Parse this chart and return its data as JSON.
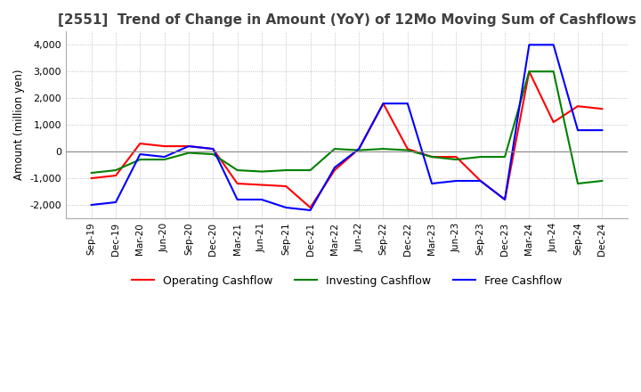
{
  "title": "[2551]  Trend of Change in Amount (YoY) of 12Mo Moving Sum of Cashflows",
  "ylabel": "Amount (million yen)",
  "ylim": [
    -2500,
    4500
  ],
  "yticks": [
    -2000,
    -1000,
    0,
    1000,
    2000,
    3000,
    4000
  ],
  "x_labels": [
    "Sep-19",
    "Dec-19",
    "Mar-20",
    "Jun-20",
    "Sep-20",
    "Dec-20",
    "Mar-21",
    "Jun-21",
    "Sep-21",
    "Dec-21",
    "Mar-22",
    "Jun-22",
    "Sep-22",
    "Dec-22",
    "Mar-23",
    "Jun-23",
    "Sep-23",
    "Dec-23",
    "Mar-24",
    "Jun-24",
    "Sep-24",
    "Dec-24"
  ],
  "operating": [
    -1000,
    -900,
    300,
    200,
    200,
    100,
    -1200,
    -1250,
    -1300,
    -2100,
    -700,
    100,
    1800,
    100,
    -200,
    -200,
    -1100,
    -1800,
    3000,
    1100,
    1700,
    1600
  ],
  "investing": [
    -800,
    -700,
    -300,
    -300,
    -50,
    -100,
    -700,
    -750,
    -700,
    -700,
    100,
    50,
    100,
    50,
    -200,
    -300,
    -200,
    -200,
    3000,
    3000,
    -1200,
    -1100
  ],
  "free": [
    -2000,
    -1900,
    -100,
    -200,
    200,
    100,
    -1800,
    -1800,
    -2100,
    -2200,
    -600,
    100,
    1800,
    1800,
    -1200,
    -1100,
    -1100,
    -1800,
    4000,
    4000,
    800,
    800
  ],
  "op_color": "#ff0000",
  "inv_color": "#008000",
  "free_color": "#0000ff",
  "background_color": "#ffffff",
  "grid_color": "#b0b0b0",
  "title_color": "#404040",
  "title_fontsize": 11,
  "legend_labels": [
    "Operating Cashflow",
    "Investing Cashflow",
    "Free Cashflow"
  ]
}
